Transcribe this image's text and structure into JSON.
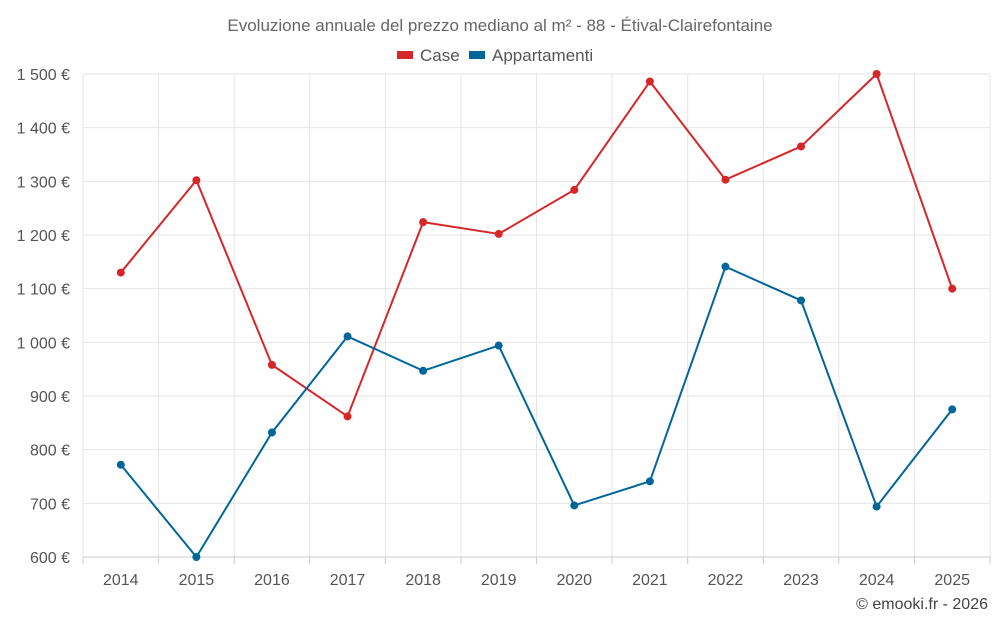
{
  "chart_data": {
    "type": "line",
    "title": "Evoluzione annuale del prezzo mediano al m² - 88 - Étival-Clairefontaine",
    "categories": [
      "2014",
      "2015",
      "2016",
      "2017",
      "2018",
      "2019",
      "2020",
      "2021",
      "2022",
      "2023",
      "2024",
      "2025"
    ],
    "series": [
      {
        "name": "Case",
        "color": "#d62728",
        "values": [
          1130,
          1302,
          958,
          862,
          1224,
          1202,
          1284,
          1486,
          1303,
          1365,
          1500,
          1100
        ]
      },
      {
        "name": "Appartamenti",
        "color": "#006699",
        "values": [
          772,
          600,
          832,
          1011,
          947,
          994,
          696,
          741,
          1141,
          1078,
          694,
          875
        ]
      }
    ],
    "ylim": [
      600,
      1500
    ],
    "yticks": [
      600,
      700,
      800,
      900,
      1000,
      1100,
      1200,
      1300,
      1400,
      1500
    ],
    "ytick_labels": [
      "600 €",
      "700 €",
      "800 €",
      "900 €",
      "1 000 €",
      "1 100 €",
      "1 200 €",
      "1 300 €",
      "1 400 €",
      "1 500 €"
    ],
    "xlabel": "",
    "ylabel": "",
    "grid": true,
    "legend_position": "top-center"
  },
  "credit": "© emooki.fr - 2026"
}
